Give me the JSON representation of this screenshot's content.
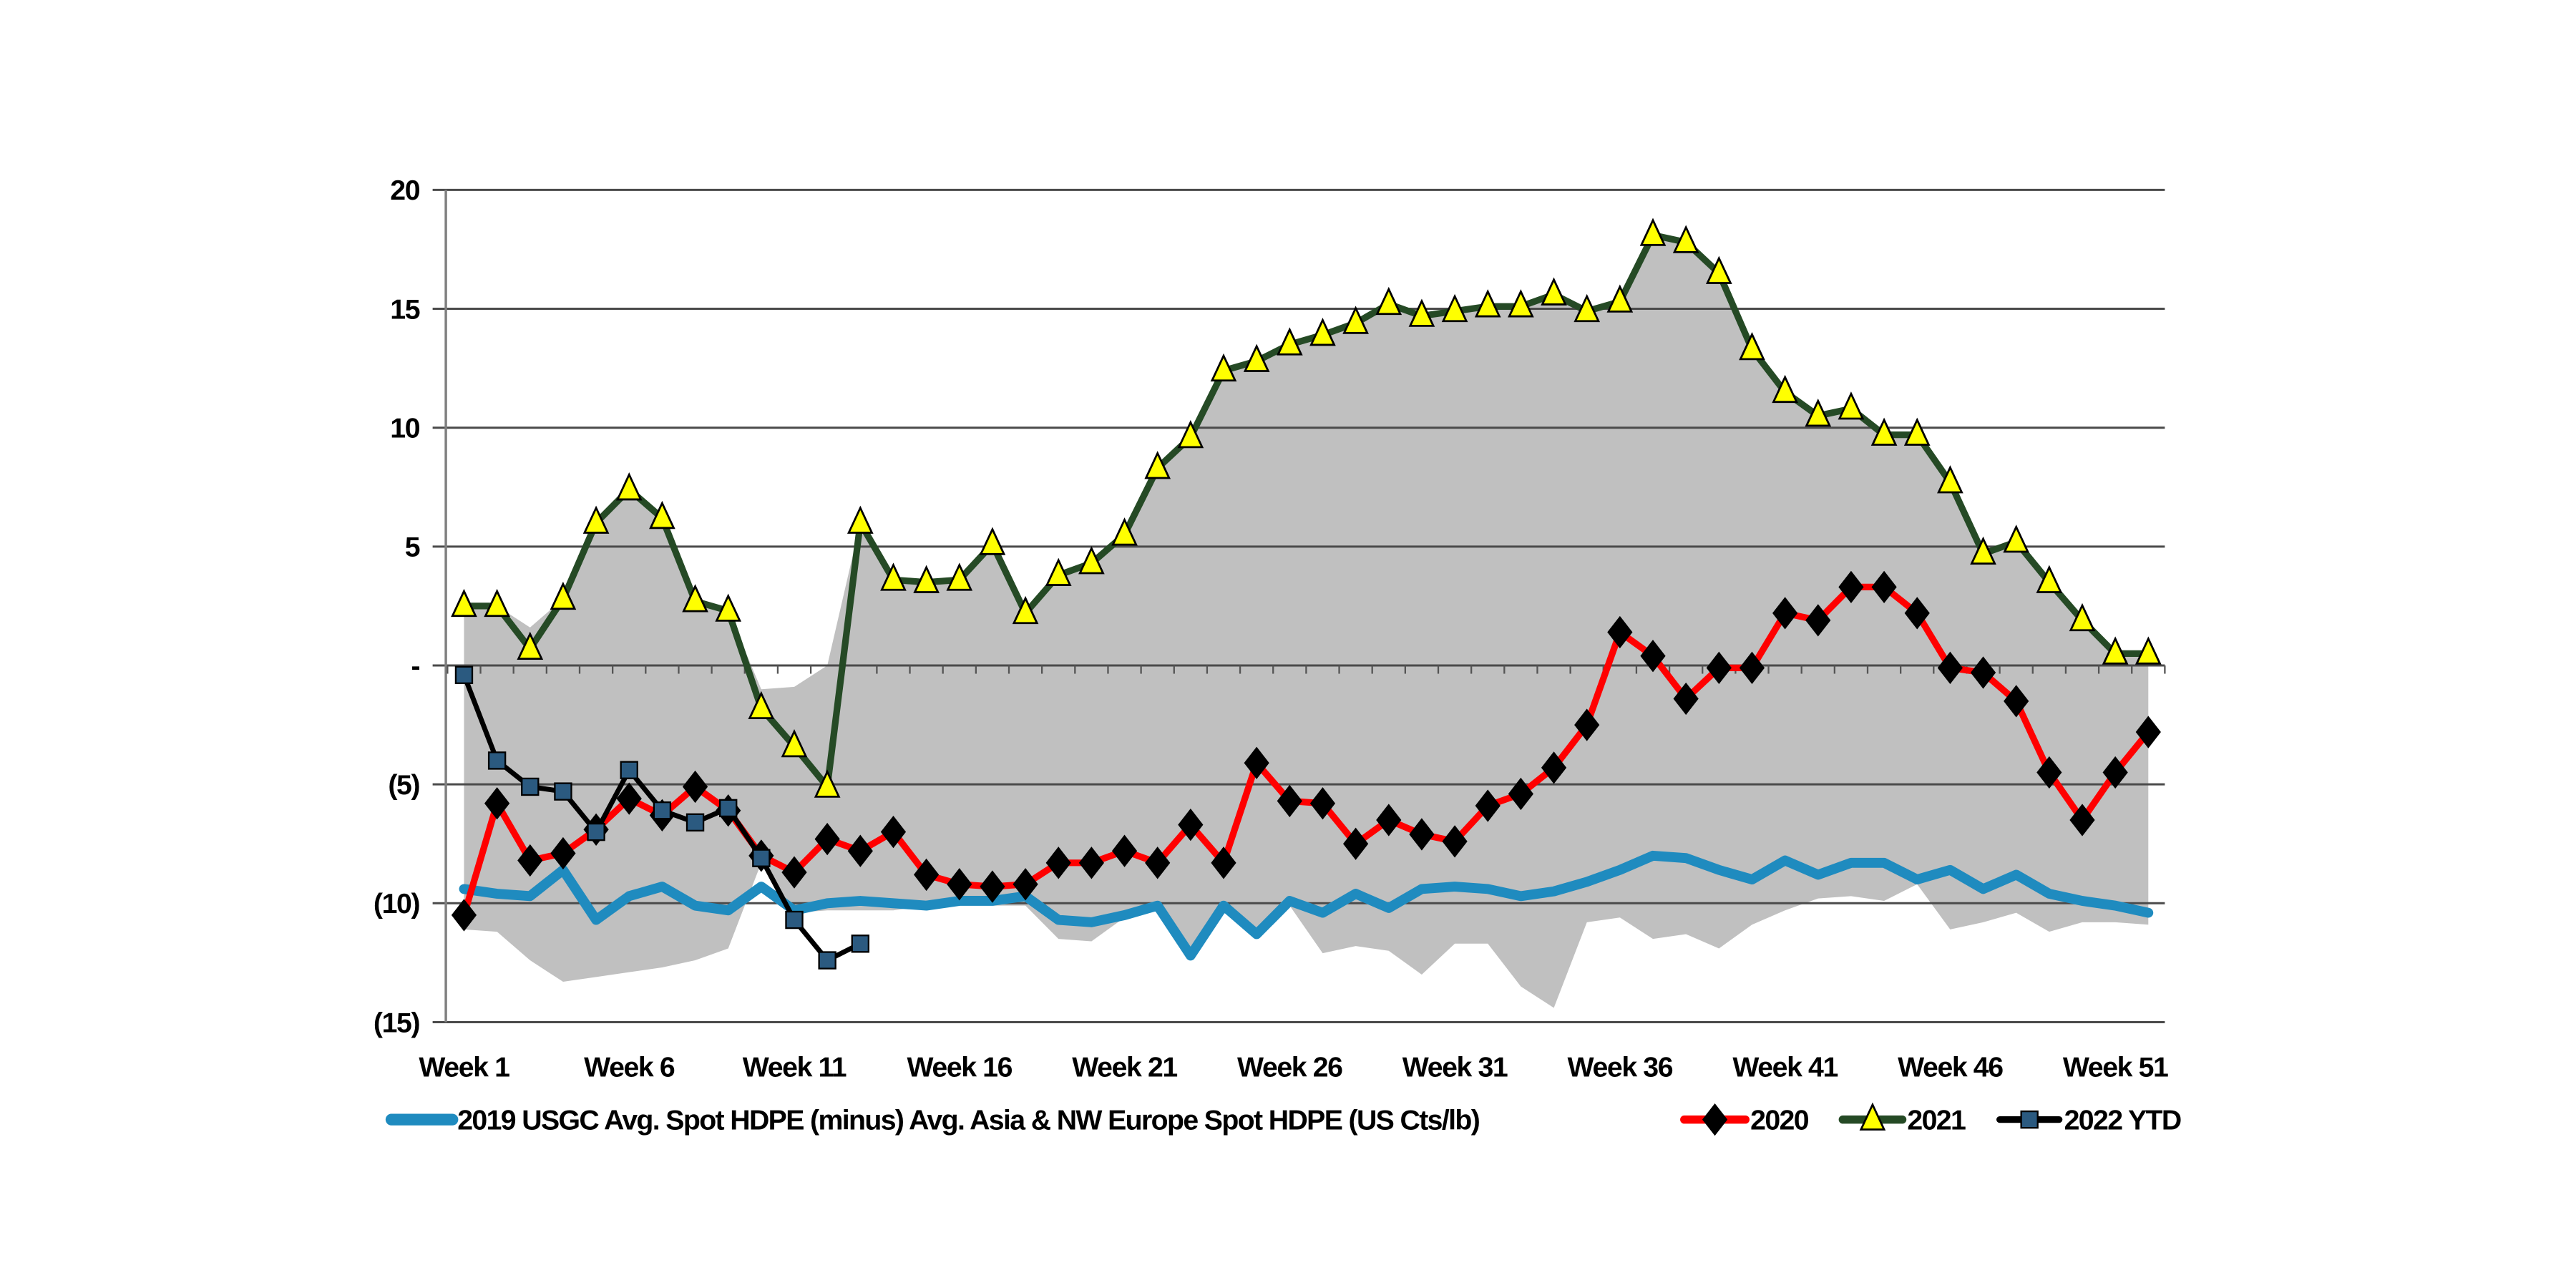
{
  "chart_data": {
    "type": "line",
    "title": "",
    "xlabel": "",
    "ylabel": "",
    "ylim": [
      -15,
      20
    ],
    "yticks": [
      20,
      15,
      10,
      5,
      0,
      -5,
      -10,
      -15
    ],
    "ytick_labels": [
      "20",
      "15",
      "10",
      "5",
      "-",
      "(5)",
      "(10)",
      "(15)"
    ],
    "grid": "horizontal",
    "legend_position": "bottom",
    "x": [
      "Week 1",
      "Week 2",
      "Week 3",
      "Week 4",
      "Week 5",
      "Week 6",
      "Week 7",
      "Week 8",
      "Week 9",
      "Week 10",
      "Week 11",
      "Week 12",
      "Week 13",
      "Week 14",
      "Week 15",
      "Week 16",
      "Week 17",
      "Week 18",
      "Week 19",
      "Week 20",
      "Week 21",
      "Week 22",
      "Week 23",
      "Week 24",
      "Week 25",
      "Week 26",
      "Week 27",
      "Week 28",
      "Week 29",
      "Week 30",
      "Week 31",
      "Week 32",
      "Week 33",
      "Week 34",
      "Week 35",
      "Week 36",
      "Week 37",
      "Week 38",
      "Week 39",
      "Week 40",
      "Week 41",
      "Week 42",
      "Week 43",
      "Week 44",
      "Week 45",
      "Week 46",
      "Week 47",
      "Week 48",
      "Week 49",
      "Week 50",
      "Week 51",
      "Week 52"
    ],
    "xtick_labels": [
      "Week 1",
      "Week 6",
      "Week 11",
      "Week 16",
      "Week 21",
      "Week 26",
      "Week 31",
      "Week 36",
      "Week 41",
      "Week 46",
      "Week 51"
    ],
    "range_band": {
      "name": "Range",
      "color": "#c0c0c0",
      "upper": [
        2.5,
        2.5,
        1.6,
        2.8,
        6.0,
        7.4,
        6.2,
        2.7,
        2.3,
        -1.0,
        -0.9,
        0.0,
        6.0,
        3.6,
        3.5,
        3.6,
        5.1,
        2.2,
        3.8,
        4.3,
        5.5,
        8.3,
        9.6,
        12.4,
        12.8,
        13.5,
        13.9,
        14.4,
        15.2,
        14.7,
        14.9,
        15.1,
        15.1,
        15.6,
        14.9,
        15.3,
        18.1,
        17.8,
        16.5,
        13.3,
        11.5,
        10.5,
        10.8,
        9.7,
        9.7,
        7.7,
        4.7,
        5.2,
        3.5,
        1.9,
        0.5,
        0.5
      ],
      "lower": [
        -11.1,
        -11.2,
        -12.4,
        -13.3,
        -13.1,
        -12.9,
        -12.7,
        -12.4,
        -11.9,
        -8.3,
        -10.4,
        -10.3,
        -10.3,
        -10.3,
        -10.1,
        -10.1,
        -10.1,
        -10.1,
        -11.5,
        -11.6,
        -10.6,
        -10.1,
        -12.2,
        -10.2,
        -11.3,
        -10.1,
        -12.1,
        -11.8,
        -12.0,
        -13.0,
        -11.7,
        -11.7,
        -13.5,
        -14.4,
        -10.8,
        -10.6,
        -11.5,
        -11.3,
        -11.9,
        -10.9,
        -10.3,
        -9.8,
        -9.7,
        -9.9,
        -9.2,
        -11.1,
        -10.8,
        -10.4,
        -11.2,
        -10.8,
        -10.8,
        -10.9
      ]
    },
    "series": [
      {
        "name": "2019 USGC Avg. Spot HDPE (minus) Avg. Asia & NW Europe Spot HDPE (US Cts/lb)",
        "color": "#1f8bbf",
        "marker": "none",
        "values": [
          -9.4,
          -9.6,
          -9.7,
          -8.6,
          -10.7,
          -9.7,
          -9.3,
          -10.1,
          -10.3,
          -9.3,
          -10.3,
          -10.0,
          -9.9,
          -10.0,
          -10.1,
          -9.9,
          -9.9,
          -9.7,
          -10.7,
          -10.8,
          -10.5,
          -10.1,
          -12.2,
          -10.1,
          -11.3,
          -9.9,
          -10.4,
          -9.6,
          -10.2,
          -9.4,
          -9.3,
          -9.4,
          -9.7,
          -9.5,
          -9.1,
          -8.6,
          -8.0,
          -8.1,
          -8.6,
          -9.0,
          -8.2,
          -8.8,
          -8.3,
          -8.3,
          -9.0,
          -8.6,
          -9.4,
          -8.8,
          -9.6,
          -9.9,
          -10.1,
          -10.4
        ]
      },
      {
        "name": "2020",
        "color": "#ff0000",
        "marker": "diamond",
        "marker_color": "#000000",
        "values": [
          -10.5,
          -5.8,
          -8.2,
          -7.9,
          -6.9,
          -5.6,
          -6.3,
          -5.1,
          -6.1,
          -8.0,
          -8.7,
          -7.3,
          -7.8,
          -7.0,
          -8.8,
          -9.2,
          -9.3,
          -9.2,
          -8.3,
          -8.3,
          -7.8,
          -8.3,
          -6.7,
          -8.3,
          -4.1,
          -5.7,
          -5.8,
          -7.5,
          -6.5,
          -7.1,
          -7.4,
          -5.9,
          -5.4,
          -4.3,
          -2.5,
          1.4,
          0.4,
          -1.4,
          -0.1,
          -0.1,
          2.2,
          1.9,
          3.3,
          3.3,
          2.2,
          -0.1,
          -0.3,
          -1.5,
          -4.5,
          -6.5,
          -4.5,
          -2.8
        ]
      },
      {
        "name": "2021",
        "color": "#254a25",
        "marker": "triangle",
        "marker_color": "#ffff00",
        "values": [
          2.5,
          2.5,
          0.7,
          2.8,
          6.0,
          7.4,
          6.2,
          2.7,
          2.3,
          -1.8,
          -3.4,
          -5.1,
          6.0,
          3.6,
          3.5,
          3.6,
          5.1,
          2.2,
          3.8,
          4.3,
          5.5,
          8.3,
          9.6,
          12.4,
          12.8,
          13.5,
          13.9,
          14.4,
          15.2,
          14.7,
          14.9,
          15.1,
          15.1,
          15.6,
          14.9,
          15.3,
          18.1,
          17.8,
          16.5,
          13.3,
          11.5,
          10.5,
          10.8,
          9.7,
          9.7,
          7.7,
          4.7,
          5.2,
          3.5,
          1.9,
          0.5,
          0.5
        ]
      },
      {
        "name": "2022 YTD",
        "color": "#000000",
        "marker": "square",
        "marker_color": "#2b5a80",
        "values": [
          -0.4,
          -4.0,
          -5.1,
          -5.3,
          -7.0,
          -4.4,
          -6.1,
          -6.6,
          -6.0,
          -8.1,
          -10.7,
          -12.4,
          -11.7
        ]
      }
    ]
  }
}
